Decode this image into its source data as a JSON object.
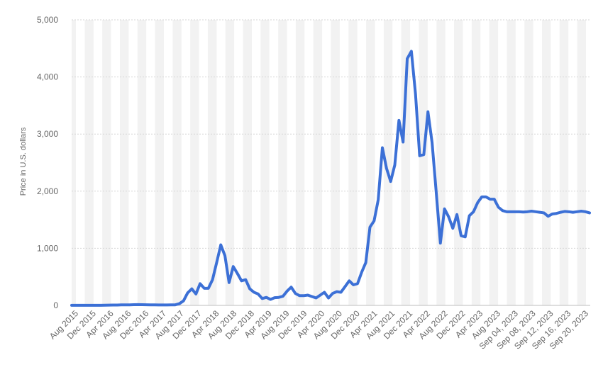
{
  "chart_data": {
    "type": "line",
    "title": "",
    "xlabel": "",
    "ylabel": "Price in U.S. dollars",
    "ylim": [
      0,
      5000
    ],
    "y_ticks": [
      0,
      1000,
      2000,
      3000,
      4000,
      5000
    ],
    "y_tick_labels": [
      "0",
      "1,000",
      "2,000",
      "3,000",
      "4,000",
      "5,000"
    ],
    "grid": "horizontal dashed, alternating vertical bands",
    "line_color": "#3c70d6",
    "band_color": "#f2f2f2",
    "grid_color": "#d6d6d6",
    "x_tick_labels": [
      "Aug 2015",
      "Dec 2015",
      "Apr 2016",
      "Aug 2016",
      "Dec 2016",
      "Apr 2017",
      "Aug 2017",
      "Dec 2017",
      "Apr 2018",
      "Aug 2018",
      "Dec 2018",
      "Apr 2019",
      "Aug 2019",
      "Dec 2019",
      "Apr 2020",
      "Aug 2020",
      "Dec 2020",
      "Apr 2021",
      "Aug 2021",
      "Dec 2021",
      "Apr 2022",
      "Aug 2022",
      "Dec 2022",
      "Apr 2023",
      "Aug 2023",
      "Sep 04, 2023",
      "Sep 08, 2023",
      "Sep 12, 2023",
      "Sep 16, 2023",
      "Sep 20, 2023"
    ],
    "series": [
      {
        "values": [
          1,
          1,
          1,
          1,
          1,
          1,
          2,
          2,
          3,
          5,
          6,
          7,
          10,
          10,
          10,
          12,
          14,
          12,
          11,
          10,
          9,
          8,
          8,
          8,
          10,
          10,
          30,
          80,
          220,
          290,
          200,
          380,
          300,
          300,
          450,
          750,
          1060,
          870,
          400,
          680,
          560,
          430,
          450,
          290,
          230,
          200,
          120,
          140,
          105,
          135,
          140,
          160,
          250,
          320,
          210,
          170,
          170,
          180,
          155,
          130,
          180,
          230,
          130,
          210,
          240,
          230,
          330,
          430,
          360,
          380,
          580,
          750,
          1370,
          1480,
          1850,
          2760,
          2400,
          2170,
          2460,
          3240,
          2860,
          4320,
          4450,
          3700,
          2620,
          2640,
          3390,
          2850,
          1980,
          1090,
          1690,
          1550,
          1350,
          1590,
          1220,
          1200,
          1570,
          1640,
          1800,
          1900,
          1900,
          1860,
          1860,
          1720,
          1660,
          1640,
          1640,
          1640,
          1640,
          1635,
          1640,
          1650,
          1640,
          1630,
          1620,
          1560,
          1600,
          1610,
          1630,
          1645,
          1640,
          1630,
          1640,
          1650,
          1640,
          1620
        ]
      }
    ]
  }
}
